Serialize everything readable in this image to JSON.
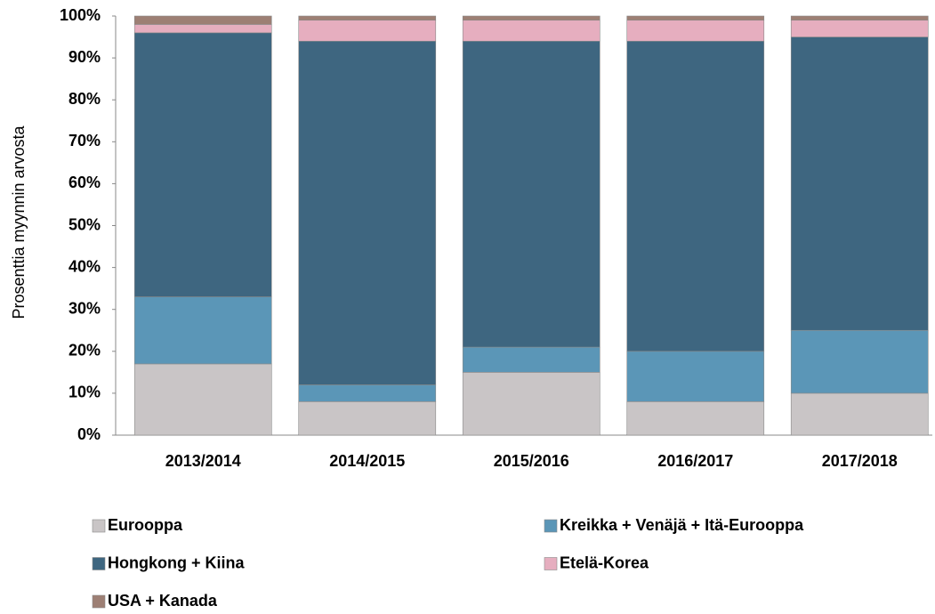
{
  "chart_data": {
    "type": "stacked_bar",
    "y_label": "Prosenttia myynnin arvosta",
    "categories": [
      "2013/2014",
      "2014/2015",
      "2015/2016",
      "2016/2017",
      "2017/2018"
    ],
    "series": [
      {
        "name": "Eurooppa",
        "color": "#c9c5c6",
        "values": [
          17,
          8,
          15,
          8,
          10
        ]
      },
      {
        "name": "Kreikka + Venäjä + Itä-Eurooppa",
        "color": "#5b96b7",
        "values": [
          16,
          4,
          6,
          12,
          15
        ]
      },
      {
        "name": "Hongkong + Kiina",
        "color": "#3e6680",
        "values": [
          63,
          82,
          73,
          74,
          70
        ]
      },
      {
        "name": "Etelä-Korea",
        "color": "#e6aebf",
        "values": [
          2,
          5,
          5,
          5,
          4
        ]
      },
      {
        "name": "USA + Kanada",
        "color": "#9d7f74",
        "values": [
          2,
          1,
          1,
          1,
          1
        ]
      }
    ],
    "ylim": [
      0,
      100
    ],
    "yticks": [
      {
        "value": 0,
        "label": "0%"
      },
      {
        "value": 10,
        "label": "10%"
      },
      {
        "value": 20,
        "label": "20%"
      },
      {
        "value": 30,
        "label": "30%"
      },
      {
        "value": 40,
        "label": "40%"
      },
      {
        "value": 50,
        "label": "50%"
      },
      {
        "value": 60,
        "label": "60%"
      },
      {
        "value": 70,
        "label": "70%"
      },
      {
        "value": 80,
        "label": "80%"
      },
      {
        "value": 90,
        "label": "90%"
      },
      {
        "value": 100,
        "label": "100%"
      }
    ],
    "grid": false,
    "legend": "bottom"
  }
}
